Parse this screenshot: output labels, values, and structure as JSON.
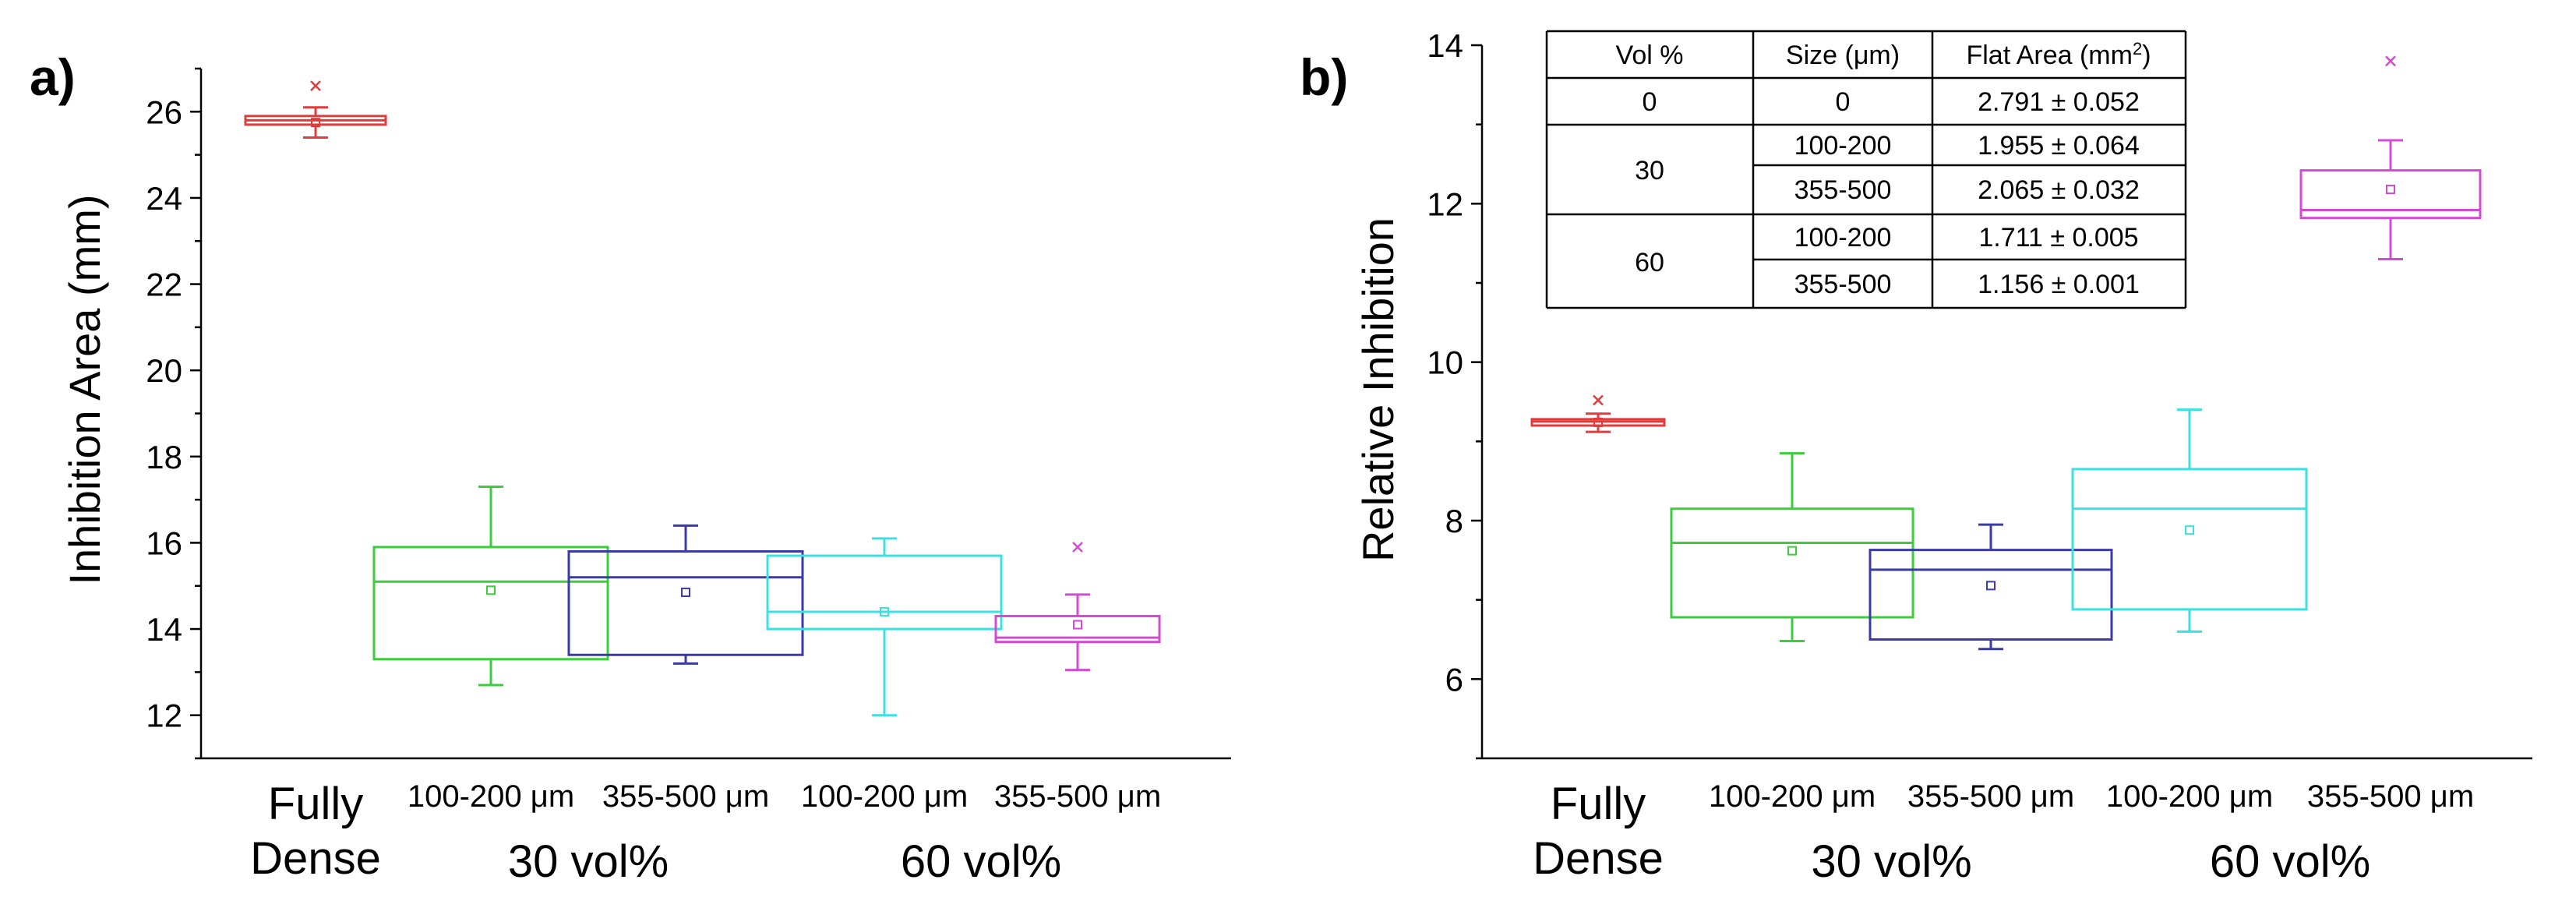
{
  "chart_data": [
    {
      "panel_label": "a)",
      "type": "box",
      "ylabel": "Inhibition Area (mm)",
      "ylim": [
        11,
        27
      ],
      "yticks": [
        12,
        14,
        16,
        18,
        20,
        22,
        24,
        26
      ],
      "group_labels": [
        {
          "line1": "Fully",
          "line2": "Dense"
        },
        {
          "line1": "30 vol%"
        },
        {
          "line1": "60 vol%"
        }
      ],
      "categories": [
        "",
        "100-200 μm",
        "355-500 μm",
        "100-200 μm",
        "355-500 μm"
      ],
      "series": [
        {
          "name": "Fully Dense",
          "color": "#e03c3c",
          "min": 25.4,
          "q1": 25.7,
          "median": 25.8,
          "q3": 25.9,
          "max": 26.1,
          "mean": 25.75,
          "outliers": [
            26.6
          ]
        },
        {
          "name": "30 vol% 100-200 μm",
          "color": "#3ccc3c",
          "min": 12.7,
          "q1": 13.3,
          "median": 15.1,
          "q3": 15.9,
          "max": 17.3,
          "mean": 14.9,
          "outliers": []
        },
        {
          "name": "30 vol% 355-500 μm",
          "color": "#3a3aa8",
          "min": 13.2,
          "q1": 13.4,
          "median": 15.2,
          "q3": 15.8,
          "max": 16.4,
          "mean": 14.85,
          "outliers": []
        },
        {
          "name": "60 vol% 100-200 μm",
          "color": "#3ce0e0",
          "min": 12.0,
          "q1": 14.0,
          "median": 14.4,
          "q3": 15.7,
          "max": 16.1,
          "mean": 14.4,
          "outliers": []
        },
        {
          "name": "60 vol% 355-500 μm",
          "color": "#d24bd2",
          "min": 13.05,
          "q1": 13.7,
          "median": 13.8,
          "q3": 14.3,
          "max": 14.8,
          "mean": 14.1,
          "outliers": [
            15.9
          ]
        }
      ]
    },
    {
      "panel_label": "b)",
      "type": "box",
      "ylabel": "Relative Inhibition",
      "ylim": [
        5,
        14
      ],
      "yticks": [
        6,
        8,
        10,
        12,
        14
      ],
      "group_labels": [
        {
          "line1": "Fully",
          "line2": "Dense"
        },
        {
          "line1": "30 vol%"
        },
        {
          "line1": "60 vol%"
        }
      ],
      "categories": [
        "",
        "100-200 μm",
        "355-500 μm",
        "100-200 μm",
        "355-500 μm"
      ],
      "series": [
        {
          "name": "Fully Dense",
          "color": "#e03c3c",
          "min": 9.12,
          "q1": 9.2,
          "median": 9.25,
          "q3": 9.28,
          "max": 9.35,
          "mean": 9.24,
          "outliers": [
            9.52
          ]
        },
        {
          "name": "30 vol% 100-200 μm",
          "color": "#3ccc3c",
          "min": 6.48,
          "q1": 6.78,
          "median": 7.72,
          "q3": 8.15,
          "max": 8.85,
          "mean": 7.62,
          "outliers": []
        },
        {
          "name": "30 vol% 355-500 μm",
          "color": "#3a3aa8",
          "min": 6.38,
          "q1": 6.5,
          "median": 7.38,
          "q3": 7.63,
          "max": 7.95,
          "mean": 7.18,
          "outliers": []
        },
        {
          "name": "60 vol% 100-200 μm",
          "color": "#3ce0e0",
          "min": 6.6,
          "q1": 6.88,
          "median": 8.15,
          "q3": 8.65,
          "max": 9.4,
          "mean": 7.88,
          "outliers": []
        },
        {
          "name": "60 vol% 355-500 μm",
          "color": "#d24bd2",
          "min": 11.3,
          "q1": 11.82,
          "median": 11.92,
          "q3": 12.42,
          "max": 12.8,
          "mean": 12.18,
          "outliers": [
            13.8
          ]
        }
      ],
      "inset_table": {
        "headers": [
          "Vol %",
          "Size (μm)",
          "Flat Area (mm",
          "2",
          ")"
        ],
        "rows": [
          {
            "vol": "0",
            "size": "0",
            "area": "2.791 ± 0.052"
          },
          {
            "vol": "30",
            "size": "100-200",
            "area": "1.955 ± 0.064"
          },
          {
            "vol": "",
            "size": "355-500",
            "area": "2.065 ± 0.032"
          },
          {
            "vol": "60",
            "size": "100-200",
            "area": "1.711 ± 0.005"
          },
          {
            "vol": "",
            "size": "355-500",
            "area": "1.156 ± 0.001"
          }
        ]
      }
    }
  ]
}
